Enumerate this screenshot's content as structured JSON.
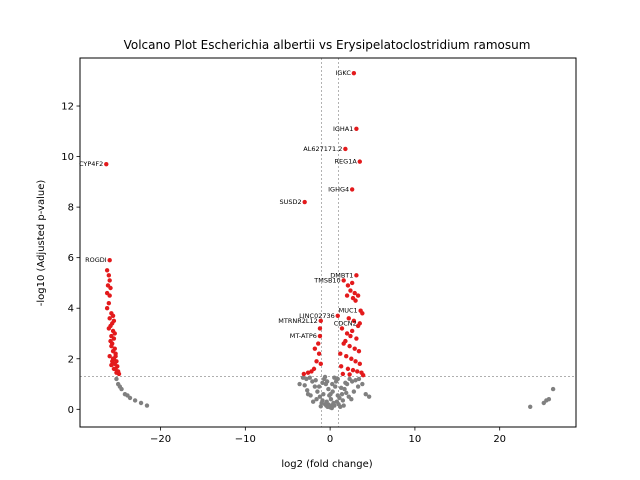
{
  "chart_data": {
    "type": "scatter",
    "title": "Volcano Plot Escherichia albertii vs Erysipelatoclostridium ramosum",
    "xlabel": "log2 (fold change)",
    "ylabel": "-log10 (Adjusted p-value)",
    "xlim": [
      -29.5,
      29
    ],
    "ylim": [
      -0.7,
      13.9
    ],
    "xticks": [
      -20,
      -10,
      0,
      10,
      20
    ],
    "yticks": [
      0,
      2,
      4,
      6,
      8,
      10,
      12
    ],
    "xtick_labels": [
      "−20",
      "−10",
      "0",
      "10",
      "20"
    ],
    "ytick_labels": [
      "0",
      "2",
      "4",
      "6",
      "8",
      "10",
      "12"
    ],
    "fc_thresholds": [
      -1,
      1
    ],
    "p_threshold": 1.3,
    "colors": {
      "significant": "#e31a1c",
      "not_significant": "#808080",
      "threshold_line": "#808080"
    },
    "labeled_genes": [
      {
        "label": "IGKC",
        "x": 2.8,
        "y": 13.3
      },
      {
        "label": "IGHA1",
        "x": 3.1,
        "y": 11.1
      },
      {
        "label": "AL627171.2",
        "x": 1.8,
        "y": 10.3
      },
      {
        "label": "REG1A",
        "x": 3.5,
        "y": 9.8
      },
      {
        "label": "CYP4F2",
        "x": -26.4,
        "y": 9.7
      },
      {
        "label": "IGHG4",
        "x": 2.6,
        "y": 8.7
      },
      {
        "label": "SUSD2",
        "x": -3.0,
        "y": 8.2
      },
      {
        "label": "ROGDI",
        "x": -26.0,
        "y": 5.9
      },
      {
        "label": "DMBT1",
        "x": 3.1,
        "y": 5.3
      },
      {
        "label": "TMSB10",
        "x": 1.6,
        "y": 5.1
      },
      {
        "label": "MUC1",
        "x": 3.6,
        "y": 3.9
      },
      {
        "label": "LINC02736",
        "x": 0.9,
        "y": 3.7
      },
      {
        "label": "CDCN2",
        "x": 3.5,
        "y": 3.4
      },
      {
        "label": "MTRNR2L12",
        "x": -1.1,
        "y": 3.5
      },
      {
        "label": "MT-ATP6",
        "x": -1.2,
        "y": 2.9
      }
    ],
    "sig_down_points": [
      [
        -26.3,
        5.5
      ],
      [
        -26.1,
        5.3
      ],
      [
        -26.0,
        5.1
      ],
      [
        -26.2,
        4.9
      ],
      [
        -25.9,
        4.8
      ],
      [
        -26.3,
        4.6
      ],
      [
        -26.0,
        4.5
      ],
      [
        -26.1,
        4.2
      ],
      [
        -26.3,
        4.0
      ],
      [
        -25.8,
        3.8
      ],
      [
        -26.0,
        3.6
      ],
      [
        -25.7,
        3.4
      ],
      [
        -25.9,
        3.3
      ],
      [
        -25.6,
        3.1
      ],
      [
        -25.8,
        2.9
      ],
      [
        -25.5,
        2.8
      ],
      [
        -25.7,
        2.6
      ],
      [
        -25.4,
        2.4
      ],
      [
        -25.6,
        2.3
      ],
      [
        -25.3,
        2.1
      ],
      [
        -25.5,
        2.0
      ],
      [
        -25.2,
        1.9
      ],
      [
        -25.4,
        1.8
      ],
      [
        -25.1,
        1.7
      ],
      [
        -25.3,
        1.6
      ],
      [
        -25.0,
        1.5
      ],
      [
        -25.2,
        1.45
      ],
      [
        -24.9,
        1.4
      ],
      [
        -25.6,
        3.7
      ],
      [
        -25.5,
        3.5
      ],
      [
        -25.8,
        2.5
      ],
      [
        -25.3,
        2.2
      ],
      [
        -25.9,
        2.7
      ],
      [
        -26.1,
        3.2
      ],
      [
        -25.7,
        1.9
      ],
      [
        -25.5,
        1.6
      ],
      [
        -25.8,
        1.75
      ],
      [
        -26.0,
        2.1
      ],
      [
        -25.4,
        3.0
      ],
      [
        -25.6,
        2.0
      ]
    ],
    "sig_up_points": [
      [
        2.6,
        5.0
      ],
      [
        2.1,
        4.9
      ],
      [
        2.4,
        4.7
      ],
      [
        2.9,
        4.6
      ],
      [
        2.0,
        4.5
      ],
      [
        2.7,
        4.4
      ],
      [
        3.3,
        4.5
      ],
      [
        3.0,
        4.3
      ],
      [
        3.8,
        3.8
      ],
      [
        2.2,
        3.6
      ],
      [
        2.8,
        3.5
      ],
      [
        3.3,
        3.3
      ],
      [
        1.4,
        3.2
      ],
      [
        2.0,
        3.0
      ],
      [
        2.6,
        3.1
      ],
      [
        3.1,
        2.8
      ],
      [
        1.6,
        2.6
      ],
      [
        2.3,
        2.5
      ],
      [
        2.9,
        2.4
      ],
      [
        3.4,
        2.3
      ],
      [
        1.2,
        2.2
      ],
      [
        1.9,
        2.1
      ],
      [
        2.5,
        2.0
      ],
      [
        3.0,
        1.9
      ],
      [
        3.5,
        1.8
      ],
      [
        1.3,
        1.7
      ],
      [
        2.1,
        1.6
      ],
      [
        2.7,
        1.55
      ],
      [
        3.2,
        1.5
      ],
      [
        3.7,
        1.45
      ],
      [
        1.5,
        1.4
      ],
      [
        2.3,
        1.38
      ],
      [
        3.9,
        1.35
      ],
      [
        1.8,
        2.7
      ],
      [
        2.4,
        2.9
      ],
      [
        -1.3,
        2.2
      ],
      [
        -1.6,
        1.9
      ],
      [
        -1.9,
        1.6
      ],
      [
        -2.2,
        1.5
      ],
      [
        -1.4,
        2.6
      ],
      [
        -1.1,
        1.8
      ],
      [
        -2.6,
        1.45
      ],
      [
        -1.8,
        2.4
      ],
      [
        -3.1,
        1.4
      ],
      [
        -1.2,
        3.2
      ]
    ],
    "nonsig_points": [
      [
        0.2,
        0.05
      ],
      [
        -0.3,
        0.1
      ],
      [
        0.5,
        0.15
      ],
      [
        -0.6,
        0.2
      ],
      [
        0.8,
        0.3
      ],
      [
        -0.9,
        0.35
      ],
      [
        1.1,
        0.45
      ],
      [
        -1.2,
        0.5
      ],
      [
        1.4,
        0.6
      ],
      [
        -1.5,
        0.7
      ],
      [
        1.7,
        0.8
      ],
      [
        -1.8,
        0.9
      ],
      [
        2.0,
        1.0
      ],
      [
        -2.1,
        1.1
      ],
      [
        2.3,
        1.2
      ],
      [
        -2.4,
        1.25
      ],
      [
        0.0,
        0.08
      ],
      [
        0.4,
        0.25
      ],
      [
        -0.4,
        0.3
      ],
      [
        0.9,
        0.55
      ],
      [
        -0.8,
        0.6
      ],
      [
        1.3,
        0.85
      ],
      [
        -1.3,
        0.9
      ],
      [
        1.8,
        1.05
      ],
      [
        -1.7,
        1.15
      ],
      [
        2.6,
        1.1
      ],
      [
        -2.8,
        1.2
      ],
      [
        3.0,
        1.15
      ],
      [
        -3.2,
        1.25
      ],
      [
        3.4,
        1.2
      ],
      [
        0.1,
        0.4
      ],
      [
        -0.1,
        0.55
      ],
      [
        0.3,
        0.7
      ],
      [
        -0.2,
        0.8
      ],
      [
        0.6,
        0.9
      ],
      [
        -0.5,
        1.0
      ],
      [
        0.7,
        1.1
      ],
      [
        -0.7,
        1.2
      ],
      [
        0.5,
        1.25
      ],
      [
        -0.6,
        1.28
      ],
      [
        1.0,
        0.2
      ],
      [
        -1.0,
        0.25
      ],
      [
        1.5,
        0.35
      ],
      [
        -1.6,
        0.4
      ],
      [
        2.2,
        0.5
      ],
      [
        -2.3,
        0.55
      ],
      [
        2.8,
        0.7
      ],
      [
        -2.7,
        0.75
      ],
      [
        3.3,
        0.9
      ],
      [
        -3.0,
        0.95
      ],
      [
        3.8,
        1.0
      ],
      [
        4.2,
        0.6
      ],
      [
        4.6,
        0.5
      ],
      [
        -3.6,
        1.0
      ],
      [
        0.15,
        0.12
      ],
      [
        -0.15,
        0.18
      ],
      [
        0.35,
        0.2
      ],
      [
        -0.45,
        0.15
      ],
      [
        1.2,
        0.1
      ],
      [
        -1.1,
        0.12
      ],
      [
        0.05,
        0.6
      ],
      [
        0.25,
        1.0
      ],
      [
        -0.35,
        1.1
      ],
      [
        1.6,
        0.15
      ],
      [
        -2.0,
        0.3
      ],
      [
        2.5,
        0.4
      ],
      [
        -2.6,
        0.6
      ],
      [
        0.9,
        1.2
      ],
      [
        -0.9,
        1.05
      ],
      [
        1.9,
        0.65
      ],
      [
        -25.2,
        1.2
      ],
      [
        -25.0,
        1.0
      ],
      [
        -24.6,
        0.8
      ],
      [
        -24.2,
        0.6
      ],
      [
        -23.6,
        0.45
      ],
      [
        -23.0,
        0.35
      ],
      [
        -22.3,
        0.25
      ],
      [
        -21.6,
        0.15
      ],
      [
        -24.8,
        0.9
      ],
      [
        -23.9,
        0.55
      ],
      [
        23.6,
        0.1
      ],
      [
        25.2,
        0.25
      ],
      [
        25.5,
        0.35
      ],
      [
        25.8,
        0.4
      ],
      [
        26.3,
        0.8
      ]
    ]
  }
}
